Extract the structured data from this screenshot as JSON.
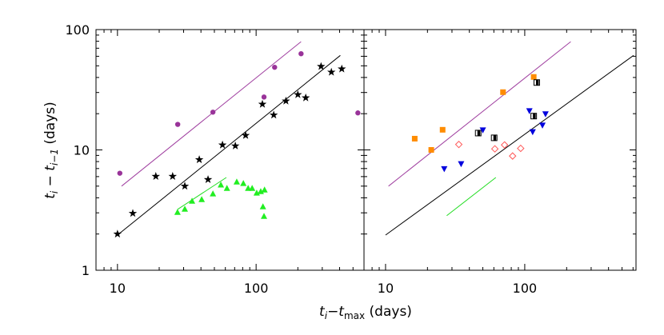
{
  "xlabel": [
    "t",
    "i",
    "−t",
    "max",
    " (days)"
  ],
  "ylabel": [
    "t",
    "i",
    " − t",
    "i−1",
    " (days)"
  ],
  "chart_data": [
    {
      "type": "scatter",
      "log_x": true,
      "log_y": true,
      "xlim": [
        7,
        600
      ],
      "ylim": [
        1,
        100
      ],
      "xticks": [
        10,
        100
      ],
      "yticks": [
        1,
        10,
        100
      ],
      "show_ytick_labels": true,
      "series": [
        {
          "mode": "line",
          "color": "#a040a0",
          "x": [
            10.7,
            211
          ],
          "y": [
            5.0,
            79.4
          ]
        },
        {
          "mode": "line",
          "color": "#000000",
          "x": [
            10,
            405
          ],
          "y": [
            1.96,
            61
          ]
        },
        {
          "mode": "line",
          "color": "#22dd22",
          "x": [
            27.1,
            61
          ],
          "y": [
            3.2,
            5.9
          ]
        },
        {
          "mode": "markers",
          "marker": "star",
          "color": "#000000",
          "x": [
            10,
            12.9,
            18.9,
            25,
            30.6,
            38.9,
            45,
            57.2,
            70.8,
            84,
            111,
            134,
            164,
            200,
            228,
            294,
            349,
            415
          ],
          "y": [
            2.0,
            2.97,
            6.03,
            6.03,
            5.0,
            8.3,
            5.67,
            11,
            10.8,
            13.2,
            24,
            19.5,
            25.5,
            28.8,
            27.1,
            49.4,
            44.3,
            47.1
          ]
        },
        {
          "mode": "markers",
          "marker": "circle",
          "color": "#993399",
          "x": [
            10.4,
            27.2,
            48.8,
            114,
            136,
            211,
            542
          ],
          "y": [
            6.4,
            16.3,
            20.6,
            27.5,
            48.6,
            63,
            20.3
          ]
        },
        {
          "mode": "markers",
          "marker": "triangle-up",
          "color": "#22ee22",
          "x": [
            27.1,
            30.6,
            34.5,
            40.5,
            48.8,
            55.7,
            61.6,
            72.5,
            80.9,
            87.6,
            93.6,
            101,
            108,
            115,
            112,
            114
          ],
          "y": [
            3.02,
            3.21,
            3.74,
            3.86,
            4.3,
            5.1,
            4.78,
            5.4,
            5.25,
            4.78,
            4.78,
            4.37,
            4.5,
            4.64,
            3.36,
            2.8
          ]
        }
      ]
    },
    {
      "type": "scatter",
      "log_x": true,
      "log_y": true,
      "xlim": [
        7,
        630
      ],
      "ylim": [
        1,
        100
      ],
      "xticks": [
        10,
        100
      ],
      "yticks": [
        1,
        10,
        100
      ],
      "show_ytick_labels": false,
      "series": [
        {
          "mode": "line",
          "color": "#a040a0",
          "x": [
            10.5,
            214
          ],
          "y": [
            5.0,
            79.4
          ]
        },
        {
          "mode": "line",
          "color": "#000000",
          "x": [
            10,
            605
          ],
          "y": [
            1.96,
            61
          ]
        },
        {
          "mode": "line",
          "color": "#22dd22",
          "x": [
            27.5,
            62
          ],
          "y": [
            2.84,
            5.9
          ]
        },
        {
          "mode": "markers",
          "marker": "square",
          "color": "#ff8c00",
          "x": [
            16.2,
            21.3,
            25.7,
            69.8,
            116
          ],
          "y": [
            12.4,
            10,
            14.7,
            30.2,
            40.4
          ]
        },
        {
          "mode": "markers",
          "marker": "square-half",
          "color": "#000000",
          "x": [
            46.3,
            60.3,
            116,
            122
          ],
          "y": [
            13.8,
            12.6,
            19.1,
            36.3
          ]
        },
        {
          "mode": "markers",
          "marker": "triangle-down",
          "color": "#0000dd",
          "x": [
            26.4,
            34.9,
            50,
            108,
            141,
            114,
            134
          ],
          "y": [
            7.0,
            7.7,
            14.7,
            21.2,
            20,
            14.2,
            16.1
          ]
        },
        {
          "mode": "markers",
          "marker": "diamond-open",
          "color": "#ff5555",
          "x": [
            33.6,
            61,
            71.6,
            81.8,
            93.5
          ],
          "y": [
            11.1,
            10.2,
            11,
            8.9,
            10.3
          ]
        }
      ]
    }
  ]
}
